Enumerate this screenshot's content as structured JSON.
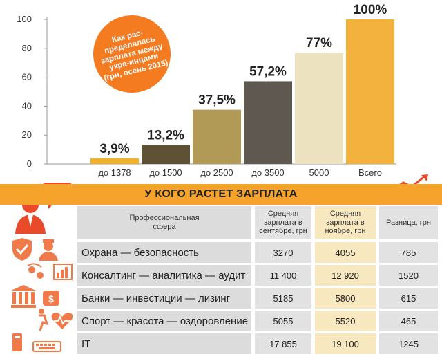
{
  "chart_data": {
    "type": "bar",
    "categories": [
      "до 1378",
      "до 1500",
      "до 2500",
      "до 3500",
      "5000",
      "Всего"
    ],
    "values": [
      3.9,
      13.2,
      37.5,
      57.2,
      77,
      100
    ],
    "value_labels": [
      "3,9%",
      "13,2%",
      "37,5%",
      "57,2%",
      "77%",
      "100%"
    ],
    "colors": [
      "#f1b12a",
      "#5e5135",
      "#b19a56",
      "#5e5851",
      "#ede2c0",
      "#f3b23e"
    ],
    "ylim": [
      0,
      100
    ],
    "yticks": [
      0,
      20,
      40,
      60,
      80,
      100
    ],
    "grid": false,
    "title": ""
  },
  "callout": {
    "text": "Как рас-пределялась зарплата между укра-инцами (грн, осень 2015)"
  },
  "table": {
    "title": "У КОГО РАСТЕТ ЗАРПЛАТА",
    "headers": {
      "sphere": "Профессиональная сфера",
      "sept": "Средняя зарплата в сентябре, грн",
      "nov": "Средняя зарплата в ноябре, грн",
      "diff": "Разница, грн"
    },
    "rows": [
      {
        "sphere": "Охрана — безопасность",
        "sept": "3270",
        "nov": "4055",
        "diff": "785",
        "icon": "shield-guard-icon"
      },
      {
        "sphere": "Консалтинг — аналитика — аудит",
        "sept": "11 400",
        "nov": "12 920",
        "diff": "1520",
        "icon": "consulting-chart-icon"
      },
      {
        "sphere": "Банки — инвестиции — лизинг",
        "sept": "5185",
        "nov": "5800",
        "diff": "615",
        "icon": "bank-icon"
      },
      {
        "sphere": "Спорт — красота — оздоровление",
        "sept": "5055",
        "nov": "5520",
        "diff": "465",
        "icon": "sport-heart-icon"
      },
      {
        "sphere": "IT",
        "sept": "17 855",
        "nov": "19 100",
        "diff": "1245",
        "icon": "computer-icon"
      }
    ]
  },
  "icons": {
    "person": "businessman-dollar-icon",
    "growth": "growth-chart-icon",
    "accent": "#e84a2a"
  }
}
